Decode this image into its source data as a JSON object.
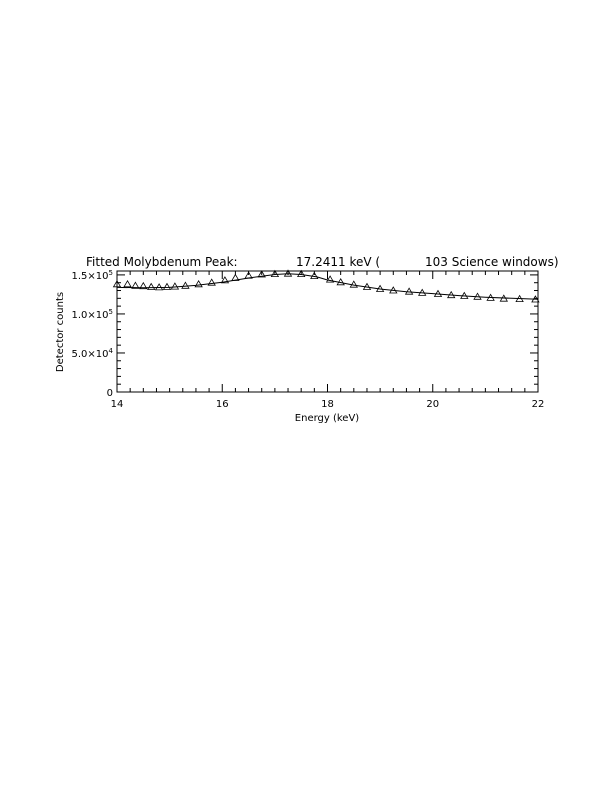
{
  "chart_data": {
    "type": "scatter",
    "title": {
      "label": "Fitted Molybdenum Peak:",
      "energy": "17.2411 keV (",
      "windows": "103 Science windows)"
    },
    "xlabel": "Energy (keV)",
    "ylabel": "Detector counts",
    "xlim": [
      14,
      22
    ],
    "ylim": [
      0,
      155000
    ],
    "x_ticks": [
      14,
      16,
      18,
      20,
      22
    ],
    "y_ticks": [
      {
        "value": 0,
        "mant": "0",
        "exp": ""
      },
      {
        "value": 50000,
        "mant": "5.0×10",
        "exp": "4"
      },
      {
        "value": 100000,
        "mant": "1.0×10",
        "exp": "5"
      },
      {
        "value": 150000,
        "mant": "1.5×10",
        "exp": "5"
      }
    ],
    "grid": false,
    "series": [
      {
        "marker": "triangle",
        "x": [
          14.0,
          14.2,
          14.35,
          14.5,
          14.65,
          14.8,
          14.95,
          15.1,
          15.3,
          15.55,
          15.8,
          16.05,
          16.25,
          16.5,
          16.75,
          17.0,
          17.25,
          17.5,
          17.75,
          18.05,
          18.25,
          18.5,
          18.75,
          19.0,
          19.25,
          19.55,
          19.8,
          20.1,
          20.35,
          20.6,
          20.85,
          21.1,
          21.35,
          21.65,
          21.95
        ],
        "y": [
          138000,
          138000,
          136000,
          135500,
          134500,
          134000,
          134500,
          135000,
          136000,
          138000,
          140000,
          143000,
          146000,
          149000,
          150500,
          151000,
          151500,
          151000,
          148500,
          144000,
          140500,
          137500,
          134500,
          132000,
          130000,
          128500,
          127000,
          125500,
          124000,
          123000,
          122000,
          120500,
          119500,
          119000,
          118500
        ]
      },
      {
        "marker": "line",
        "x": [
          14.0,
          14.5,
          15.0,
          15.5,
          16.0,
          16.5,
          17.0,
          17.25,
          17.5,
          17.8,
          18.0,
          18.5,
          19.0,
          19.5,
          20.0,
          20.5,
          21.0,
          21.5,
          22.0
        ],
        "y": [
          134000,
          133500,
          134000,
          136500,
          140500,
          146000,
          150500,
          151500,
          150500,
          147500,
          143500,
          137000,
          132000,
          128500,
          126000,
          123500,
          121500,
          120000,
          118800
        ]
      }
    ]
  }
}
